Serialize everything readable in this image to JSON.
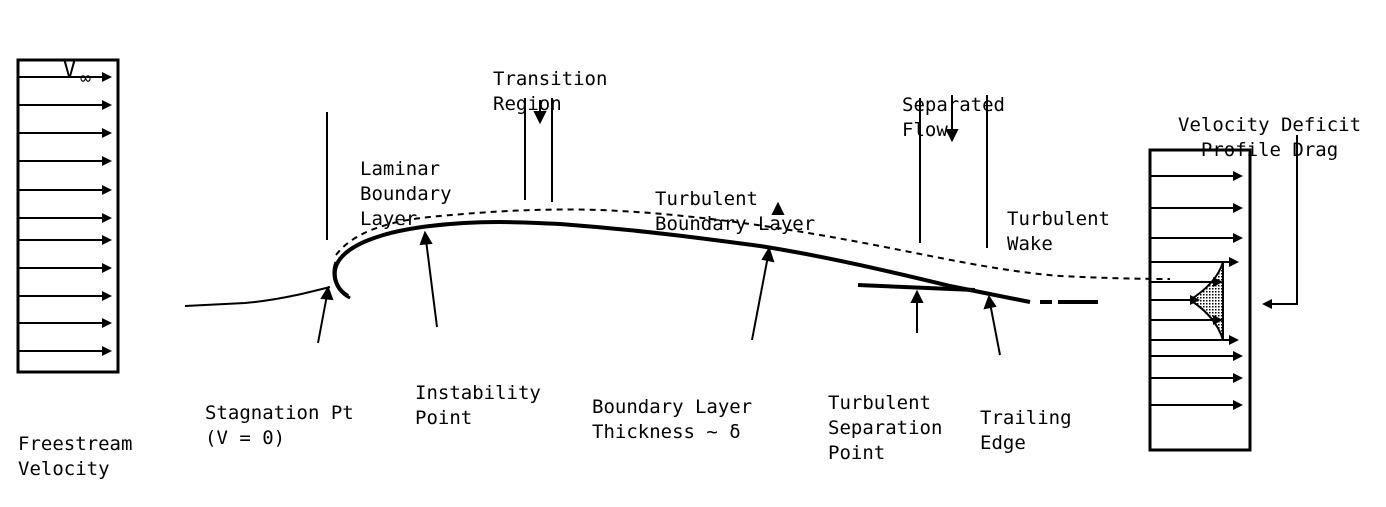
{
  "labels": {
    "v_infinity": {
      "symbol": "V",
      "subscript": "∞"
    },
    "freestream": [
      "Freestream",
      "Velocity"
    ],
    "stagnation": [
      "Stagnation Pt",
      "(V = 0)"
    ],
    "laminar": [
      "Laminar",
      "Boundary",
      "Layer"
    ],
    "instability": [
      "Instability",
      "Point"
    ],
    "transition": [
      "Transition",
      "Region"
    ],
    "turbulent_bl": [
      "Turbulent",
      "Boundary Layer"
    ],
    "bl_thickness": [
      "Boundary Layer",
      "Thickness ~ δ"
    ],
    "separated": [
      "Separated",
      "Flow"
    ],
    "turbulent_wake": [
      "Turbulent",
      "Wake"
    ],
    "turbulent_sep": [
      "Turbulent",
      "Separation",
      "Point"
    ],
    "trailing_edge": [
      "Trailing",
      "Edge"
    ],
    "velocity_deficit": [
      "Velocity Deficit",
      "~ Profile Drag"
    ]
  },
  "colors": {
    "ink": "#000000",
    "background": "#ffffff",
    "shading": "#9a9a9a"
  }
}
